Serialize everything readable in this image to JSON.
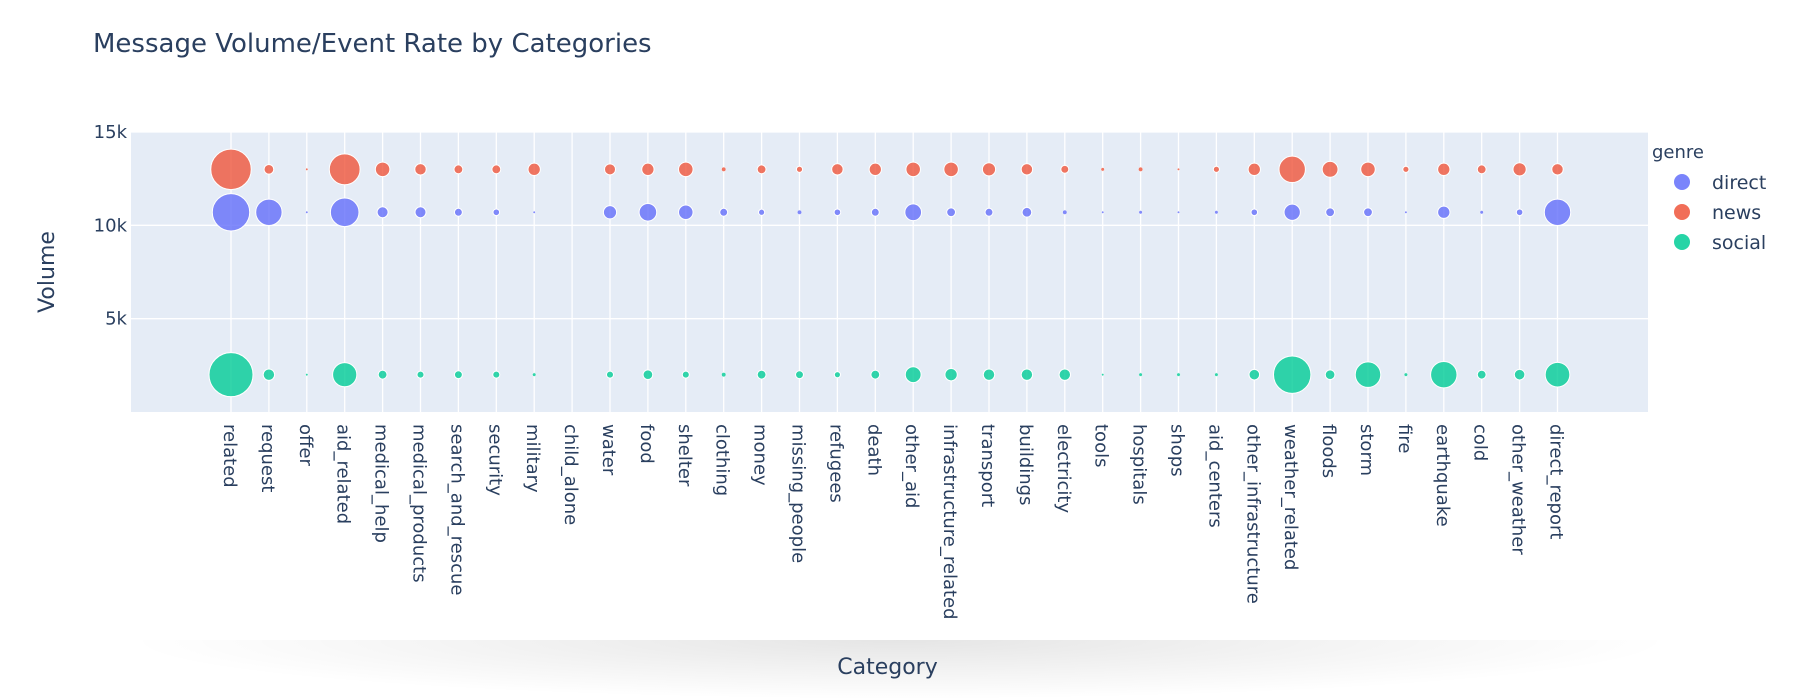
{
  "chart_data": {
    "type": "scatter",
    "title": "Message Volume/Event Rate by Categories",
    "xlabel": "Category",
    "ylabel": "Volume",
    "ylim": [
      0,
      15000
    ],
    "yticks": [
      5000,
      10000,
      15000
    ],
    "ytick_labels": [
      "5k",
      "10k",
      "15k"
    ],
    "grid": true,
    "legend": {
      "title": "genre",
      "placement": "right"
    },
    "categories": [
      "related",
      "request",
      "offer",
      "aid_related",
      "medical_help",
      "medical_products",
      "search_and_rescue",
      "security",
      "military",
      "child_alone",
      "water",
      "food",
      "shelter",
      "clothing",
      "money",
      "missing_people",
      "refugees",
      "death",
      "other_aid",
      "infrastructure_related",
      "transport",
      "buildings",
      "electricity",
      "tools",
      "hospitals",
      "shops",
      "aid_centers",
      "other_infrastructure",
      "weather_related",
      "floods",
      "storm",
      "fire",
      "earthquake",
      "cold",
      "other_weather",
      "direct_report"
    ],
    "series": [
      {
        "name": "direct",
        "color": "#636efa",
        "y": 10700,
        "sizes": [
          0.85,
          0.6,
          0.05,
          0.65,
          0.25,
          0.25,
          0.18,
          0.15,
          0.05,
          0,
          0.3,
          0.4,
          0.33,
          0.18,
          0.14,
          0.1,
          0.15,
          0.18,
          0.38,
          0.2,
          0.18,
          0.22,
          0.1,
          0.05,
          0.08,
          0.05,
          0.08,
          0.15,
          0.37,
          0.2,
          0.2,
          0.05,
          0.28,
          0.08,
          0.15,
          0.6
        ]
      },
      {
        "name": "news",
        "color": "#ef553b",
        "y": 13000,
        "sizes": [
          0.92,
          0.22,
          0.05,
          0.7,
          0.33,
          0.26,
          0.2,
          0.2,
          0.28,
          0,
          0.25,
          0.28,
          0.33,
          0.1,
          0.2,
          0.14,
          0.26,
          0.28,
          0.33,
          0.33,
          0.3,
          0.26,
          0.18,
          0.08,
          0.1,
          0.05,
          0.14,
          0.28,
          0.6,
          0.36,
          0.33,
          0.14,
          0.28,
          0.2,
          0.3,
          0.26
        ]
      },
      {
        "name": "social",
        "color": "#00cc96",
        "y": 2000,
        "sizes": [
          1.0,
          0.26,
          0.05,
          0.55,
          0.2,
          0.16,
          0.18,
          0.16,
          0.08,
          0,
          0.16,
          0.22,
          0.16,
          0.1,
          0.2,
          0.18,
          0.14,
          0.2,
          0.36,
          0.28,
          0.26,
          0.26,
          0.26,
          0.05,
          0.08,
          0.08,
          0.08,
          0.24,
          0.85,
          0.22,
          0.58,
          0.08,
          0.6,
          0.2,
          0.24,
          0.56
        ]
      }
    ]
  }
}
